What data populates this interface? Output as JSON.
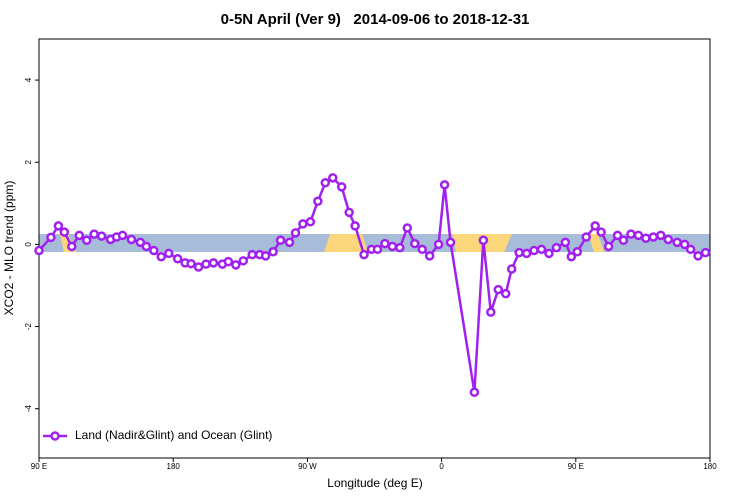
{
  "chart_data": {
    "type": "line",
    "title": "0-5N April (Ver 9)   2014-09-06 to 2018-12-31",
    "xlabel": "Longitude (deg E)",
    "ylabel": "XCO2 - MLO trend (ppm)",
    "x": [
      90,
      98,
      103,
      107,
      112,
      117,
      122,
      127,
      132,
      138,
      142,
      146,
      152,
      158,
      162,
      167,
      172,
      177,
      183,
      188,
      192,
      197,
      202,
      207,
      213,
      217,
      222,
      227,
      233,
      238,
      242,
      247,
      252,
      258,
      262,
      267,
      272,
      277,
      282,
      287,
      293,
      298,
      302,
      308,
      313,
      317,
      322,
      327,
      332,
      337,
      342,
      347,
      352,
      358,
      362,
      366,
      382,
      388,
      393,
      398,
      403,
      407,
      412,
      417,
      422,
      427,
      432,
      437,
      443,
      447,
      451,
      457,
      463,
      467,
      472,
      478,
      482,
      487,
      492,
      497,
      502,
      507,
      512,
      518,
      523,
      527,
      532,
      537
    ],
    "series": [
      {
        "name": "Land (Nadir&Glint) and Ocean (Glint)",
        "color": "#a020f0",
        "values": [
          -0.15,
          0.17,
          0.45,
          0.3,
          -0.05,
          0.22,
          0.1,
          0.25,
          0.2,
          0.12,
          0.18,
          0.22,
          0.12,
          0.05,
          -0.05,
          -0.15,
          -0.3,
          -0.22,
          -0.35,
          -0.45,
          -0.47,
          -0.55,
          -0.48,
          -0.45,
          -0.48,
          -0.42,
          -0.5,
          -0.4,
          -0.25,
          -0.25,
          -0.28,
          -0.18,
          0.1,
          0.05,
          0.28,
          0.5,
          0.55,
          1.05,
          1.5,
          1.62,
          1.4,
          0.78,
          0.45,
          -0.25,
          -0.12,
          -0.12,
          0.02,
          -0.05,
          -0.08,
          0.4,
          0.02,
          -0.12,
          -0.28,
          0.0,
          1.45,
          0.05,
          -3.6,
          0.1,
          -1.65,
          -1.1,
          -1.2,
          -0.6,
          -0.2,
          -0.22,
          -0.15,
          -0.12,
          -0.22,
          -0.08,
          0.05,
          -0.3,
          -0.18,
          0.18,
          0.45,
          0.3,
          -0.05,
          0.22,
          0.1,
          0.25,
          0.22,
          0.15,
          0.18,
          0.22,
          0.12,
          0.05,
          0.0,
          -0.12,
          -0.28,
          -0.2
        ]
      }
    ],
    "xlim": [
      90,
      540
    ],
    "xticks": [
      {
        "value": 90,
        "label": "90 E"
      },
      {
        "value": 180,
        "label": "180"
      },
      {
        "value": 270,
        "label": "90 W"
      },
      {
        "value": 360,
        "label": "0"
      },
      {
        "value": 450,
        "label": "90 E"
      },
      {
        "value": 540,
        "label": "180"
      }
    ],
    "ylim": [
      -5.2,
      5
    ],
    "yticks": [
      -4,
      -2,
      0,
      2,
      4
    ],
    "legend": "bottomleft"
  }
}
